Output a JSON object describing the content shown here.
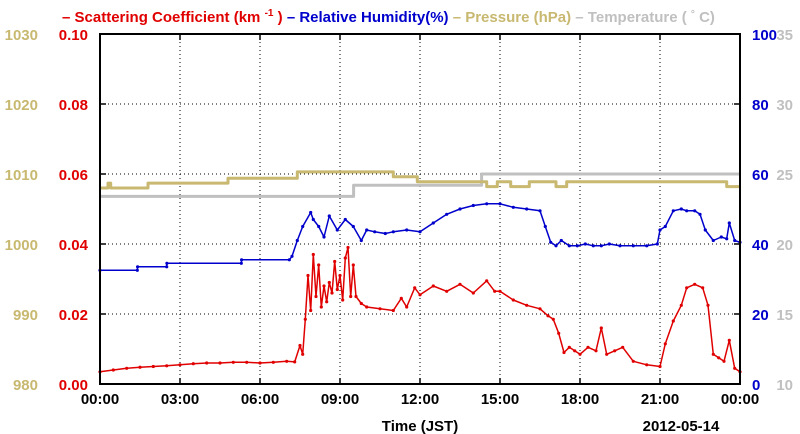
{
  "chart_data": {
    "type": "line",
    "xlabel": "Time (JST)",
    "date_label": "2012-05-14",
    "x_ticks": [
      "00:00",
      "03:00",
      "06:00",
      "09:00",
      "12:00",
      "15:00",
      "18:00",
      "21:00",
      "00:00"
    ],
    "xlim_hours": [
      0,
      24
    ],
    "grid": true,
    "legend_position": "top",
    "axes": {
      "pressure": {
        "ticks": [
          "980",
          "990",
          "1000",
          "1010",
          "1020",
          "1030"
        ],
        "range": [
          980,
          1030
        ],
        "color": "#c8b870",
        "side": "left-outer"
      },
      "scattering": {
        "ticks": [
          "0.00",
          "0.02",
          "0.04",
          "0.06",
          "0.08",
          "0.10"
        ],
        "range": [
          0,
          0.1
        ],
        "color": "#e00000",
        "side": "left-inner"
      },
      "humidity": {
        "ticks": [
          "0",
          "20",
          "40",
          "60",
          "80",
          "100"
        ],
        "range": [
          0,
          100
        ],
        "color": "#0000cc",
        "side": "right-inner"
      },
      "temperature": {
        "ticks": [
          "10",
          "15",
          "20",
          "25",
          "30",
          "35"
        ],
        "range": [
          10,
          35
        ],
        "color": "#c0c0c0",
        "side": "right-outer"
      }
    },
    "series": [
      {
        "key": "scattering",
        "name": "Scattering Coefficient (km",
        "name_sup": "-1",
        "name_tail": ")",
        "color": "#e00000",
        "axis": "scattering",
        "markers": true,
        "x": [
          0,
          0.5,
          1,
          1.5,
          2,
          2.5,
          3,
          3.5,
          4,
          4.5,
          5,
          5.5,
          6,
          6.5,
          7,
          7.3,
          7.5,
          7.6,
          7.7,
          7.8,
          7.9,
          8.0,
          8.1,
          8.2,
          8.3,
          8.4,
          8.5,
          8.6,
          8.7,
          8.8,
          8.9,
          9.0,
          9.1,
          9.2,
          9.3,
          9.4,
          9.5,
          9.6,
          9.8,
          10.0,
          10.5,
          11.0,
          11.3,
          11.5,
          11.8,
          12.0,
          12.5,
          13.0,
          13.5,
          14.0,
          14.5,
          14.8,
          15.0,
          15.5,
          16.0,
          16.5,
          16.8,
          17.0,
          17.2,
          17.4,
          17.6,
          17.8,
          18.0,
          18.3,
          18.6,
          18.8,
          19.0,
          19.3,
          19.6,
          20.0,
          20.5,
          21.0,
          21.2,
          21.5,
          21.8,
          22.0,
          22.3,
          22.6,
          22.8,
          23.0,
          23.2,
          23.4,
          23.6,
          23.8,
          24.0
        ],
        "y": [
          0.0035,
          0.004,
          0.0045,
          0.0048,
          0.005,
          0.0052,
          0.0055,
          0.0058,
          0.006,
          0.006,
          0.0062,
          0.0062,
          0.006,
          0.0062,
          0.0065,
          0.0063,
          0.011,
          0.0085,
          0.0185,
          0.031,
          0.021,
          0.037,
          0.025,
          0.034,
          0.022,
          0.028,
          0.0235,
          0.029,
          0.026,
          0.035,
          0.027,
          0.031,
          0.024,
          0.036,
          0.039,
          0.025,
          0.034,
          0.025,
          0.023,
          0.022,
          0.0215,
          0.021,
          0.0245,
          0.022,
          0.0275,
          0.0255,
          0.028,
          0.0265,
          0.0285,
          0.026,
          0.0295,
          0.0265,
          0.0265,
          0.024,
          0.0225,
          0.0215,
          0.0195,
          0.0185,
          0.0145,
          0.009,
          0.0105,
          0.0095,
          0.0085,
          0.0105,
          0.0095,
          0.016,
          0.0085,
          0.0095,
          0.0105,
          0.0065,
          0.0055,
          0.005,
          0.0115,
          0.018,
          0.0225,
          0.0275,
          0.0285,
          0.0275,
          0.0225,
          0.0085,
          0.0075,
          0.0065,
          0.0125,
          0.0045,
          0.0035
        ]
      },
      {
        "key": "humidity",
        "name": "Relative Humidity(%)",
        "color": "#0000cc",
        "axis": "humidity",
        "markers": true,
        "x": [
          0,
          1.4,
          1.41,
          2.5,
          2.51,
          5.3,
          5.31,
          7.1,
          7.2,
          7.4,
          7.6,
          7.9,
          8.0,
          8.2,
          8.4,
          8.6,
          8.9,
          9.2,
          9.5,
          9.8,
          10.0,
          10.3,
          10.7,
          11.0,
          11.5,
          12.0,
          12.5,
          13.0,
          13.5,
          14.0,
          14.5,
          15.0,
          15.5,
          16.0,
          16.5,
          16.7,
          16.9,
          17.1,
          17.3,
          17.6,
          17.9,
          18.2,
          18.5,
          18.8,
          19.1,
          19.5,
          20.0,
          20.5,
          20.9,
          21.0,
          21.2,
          21.5,
          21.8,
          22.0,
          22.3,
          22.5,
          22.7,
          23.0,
          23.3,
          23.5,
          23.6,
          23.8,
          24.0
        ],
        "y": [
          32.5,
          32.5,
          33.5,
          33.5,
          34.5,
          34.5,
          35.5,
          35.5,
          36.5,
          41,
          45,
          49,
          47,
          45,
          42,
          48,
          44,
          47,
          45,
          41,
          44,
          43.5,
          43,
          43.5,
          44,
          43.5,
          46,
          48.5,
          50,
          51,
          51.5,
          51.5,
          50.5,
          50,
          49.5,
          45,
          40.5,
          39.5,
          41,
          39.5,
          39.5,
          40,
          39.5,
          39.5,
          40,
          39.5,
          39.5,
          39.5,
          40,
          44,
          45,
          49.5,
          50,
          49.5,
          49.5,
          48.5,
          44,
          41,
          42,
          41.5,
          46,
          41,
          40.5
        ]
      },
      {
        "key": "pressure",
        "name": "Pressure (hPa)",
        "color": "#c8b870",
        "axis": "pressure",
        "markers": false,
        "step": true,
        "x": [
          0,
          0.3,
          0.4,
          1.7,
          1.8,
          4.7,
          4.8,
          6.6,
          6.7,
          7.3,
          7.4,
          10.9,
          11.0,
          11.8,
          11.9,
          14.4,
          14.5,
          14.9,
          15.0,
          15.3,
          15.4,
          16.0,
          16.1,
          16.2,
          16.3,
          16.9,
          17.0,
          17.1,
          17.2,
          17.4,
          17.5,
          23.4,
          23.5,
          24.0
        ],
        "y": [
          1008,
          1008.7,
          1008,
          1008,
          1008.7,
          1008.7,
          1009.4,
          1009.4,
          1009.4,
          1009.4,
          1010.3,
          1010.3,
          1009.6,
          1009.6,
          1008.9,
          1008.9,
          1008.2,
          1008.9,
          1008.9,
          1008.9,
          1008.2,
          1008.2,
          1008.9,
          1008.9,
          1008.9,
          1008.9,
          1008.9,
          1008.2,
          1008.2,
          1008.2,
          1008.9,
          1008.9,
          1008.2,
          1008.2
        ]
      },
      {
        "key": "temperature",
        "name": "Temperature (",
        "name_tail": "C)",
        "color": "#c0c0c0",
        "axis": "temperature",
        "markers": false,
        "step": true,
        "x": [
          0,
          9.5,
          9.51,
          14.3,
          14.31,
          24.0
        ],
        "y": [
          23.4,
          23.4,
          24.2,
          24.2,
          25.0,
          25.0
        ]
      }
    ]
  }
}
